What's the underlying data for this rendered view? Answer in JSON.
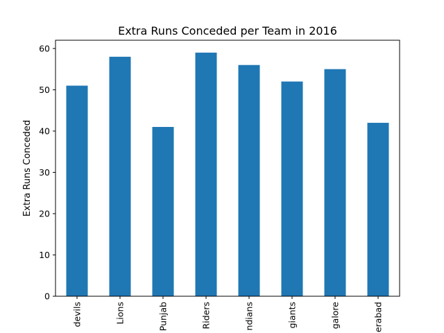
{
  "chart_data": {
    "type": "bar",
    "title": "Extra Runs Conceded per Team in 2016",
    "xlabel": "",
    "ylabel": "Extra Runs Conceded",
    "categories": [
      "devils",
      "Lions",
      "Punjab",
      "Riders",
      "ndians",
      "giants",
      "galore",
      "erabad"
    ],
    "values": [
      51,
      58,
      41,
      59,
      56,
      52,
      55,
      42
    ],
    "ylim": [
      0,
      62
    ],
    "yticks": [
      0,
      10,
      20,
      30,
      40,
      50,
      60
    ],
    "bar_color": "#1f77b4",
    "grid": false,
    "legend": "none"
  }
}
